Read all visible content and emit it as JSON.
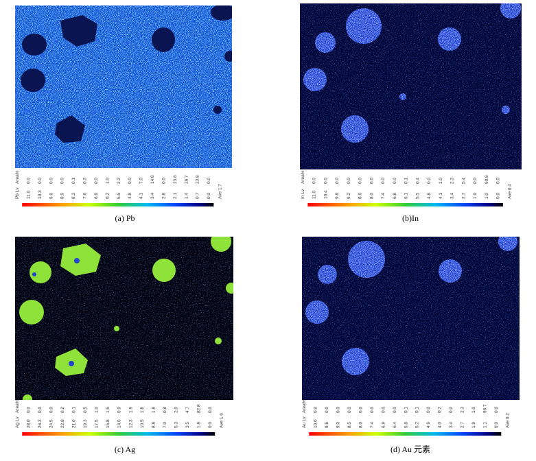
{
  "panels": [
    {
      "caption": "(a) Pb",
      "head": [
        "Pb Lv",
        "Area%"
      ],
      "rows": [
        [
          "11.0",
          "0.0"
        ],
        [
          "10.3",
          "0.0"
        ],
        [
          "9.6",
          "0.0"
        ],
        [
          "8.9",
          "0.0"
        ],
        [
          "8.3",
          "0.1"
        ],
        [
          "7.6",
          "0.3"
        ],
        [
          "6.9",
          "0.0"
        ],
        [
          "6.2",
          "1.0"
        ],
        [
          "5.5",
          "2.2"
        ],
        [
          "4.8",
          "0.0"
        ],
        [
          "4.1",
          "7.0"
        ],
        [
          "3.4",
          "14.8"
        ],
        [
          "2.8",
          "0.0"
        ],
        [
          "2.1",
          "23.6"
        ],
        [
          "1.4",
          "26.7"
        ],
        [
          "0.7",
          "23.8"
        ],
        [
          "0.0",
          "0.0"
        ]
      ],
      "ave": "Ave 1.7"
    },
    {
      "caption": "(b)In",
      "head": [
        "In Lv",
        "Area%"
      ],
      "rows": [
        [
          "11.0",
          "0.0"
        ],
        [
          "10.4",
          "0.0"
        ],
        [
          "9.8",
          "0.0"
        ],
        [
          "9.2",
          "0.0"
        ],
        [
          "8.6",
          "0.0"
        ],
        [
          "8.0",
          "0.0"
        ],
        [
          "7.4",
          "0.0"
        ],
        [
          "6.8",
          "0.0"
        ],
        [
          "6.1",
          "0.1"
        ],
        [
          "5.5",
          "0.4"
        ],
        [
          "4.8",
          "0.0"
        ],
        [
          "4.1",
          "1.0"
        ],
        [
          "3.4",
          "2.3"
        ],
        [
          "2.7",
          "5.4"
        ],
        [
          "1.9",
          "0.0"
        ],
        [
          "1.0",
          "90.8"
        ],
        [
          "0.0",
          "0.0"
        ]
      ],
      "ave": "Ave 0.4"
    },
    {
      "caption": "(c) Ag",
      "head": [
        "Ag Lv",
        "Area%"
      ],
      "rows": [
        [
          "28.0",
          "0.0"
        ],
        [
          "26.3",
          "0.0"
        ],
        [
          "24.5",
          "0.0"
        ],
        [
          "22.8",
          "0.2"
        ],
        [
          "21.0",
          "0.1"
        ],
        [
          "19.3",
          "0.5"
        ],
        [
          "17.5",
          "1.0"
        ],
        [
          "15.8",
          "1.5"
        ],
        [
          "14.0",
          "0.9"
        ],
        [
          "12.3",
          "1.9"
        ],
        [
          "10.5",
          "1.8"
        ],
        [
          "8.8",
          "1.8"
        ],
        [
          "7.0",
          "0.8"
        ],
        [
          "5.3",
          "2.0"
        ],
        [
          "3.5",
          "4.7"
        ],
        [
          "1.8",
          "82.8"
        ],
        [
          "0.0",
          "0.0"
        ]
      ],
      "ave": "Ave 1.6"
    },
    {
      "caption": "(d) Au 元素",
      "head": [
        "Au Lv",
        "Area%"
      ],
      "rows": [
        [
          "10.0",
          "0.0"
        ],
        [
          "9.5",
          "0.0"
        ],
        [
          "9.0",
          "0.0"
        ],
        [
          "8.5",
          "0.0"
        ],
        [
          "8.0",
          "0.0"
        ],
        [
          "7.4",
          "0.0"
        ],
        [
          "6.9",
          "0.0"
        ],
        [
          "6.4",
          "0.0"
        ],
        [
          "5.8",
          "0.1"
        ],
        [
          "5.2",
          "0.1"
        ],
        [
          "4.6",
          "0.0"
        ],
        [
          "4.0",
          "0.2"
        ],
        [
          "3.4",
          "0.0"
        ],
        [
          "2.7",
          "2.3"
        ],
        [
          "1.9",
          "1.0"
        ],
        [
          "1.1",
          "96.7"
        ],
        [
          "0.0",
          "0.0"
        ]
      ],
      "ave": "Ave 0.2"
    }
  ]
}
